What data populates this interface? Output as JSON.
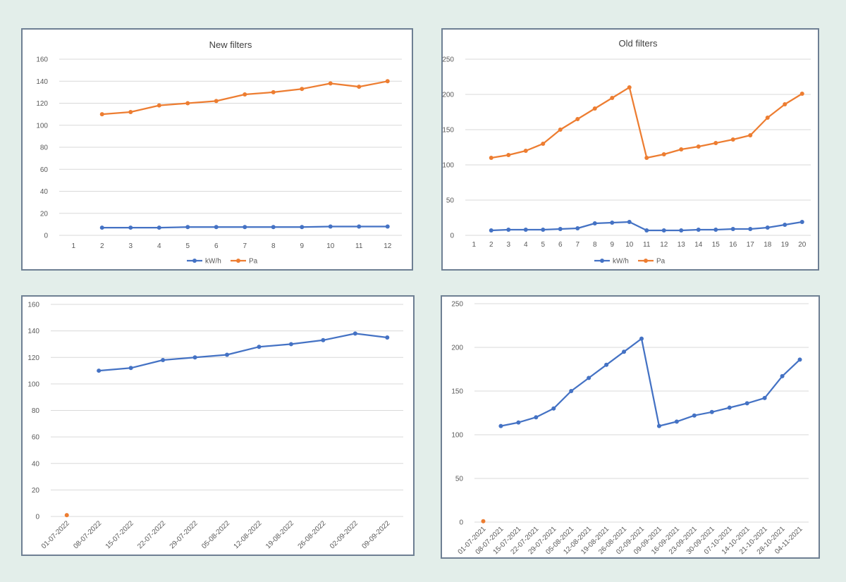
{
  "chart_data": [
    {
      "type": "line",
      "title": "New filters",
      "x": [
        1,
        2,
        3,
        4,
        5,
        6,
        7,
        8,
        9,
        10,
        11,
        12
      ],
      "ylim": [
        0,
        160
      ],
      "yticks": [
        0,
        20,
        40,
        60,
        80,
        100,
        120,
        140,
        160
      ],
      "grid": true,
      "legend": "bottom",
      "series": [
        {
          "name": "kW/h",
          "color": "#4472c4",
          "values": [
            null,
            7,
            7,
            7,
            7.5,
            7.5,
            7.5,
            7.5,
            7.5,
            8,
            8,
            8
          ]
        },
        {
          "name": "Pa",
          "color": "#ed7d31",
          "values": [
            null,
            110,
            112,
            118,
            120,
            122,
            128,
            130,
            133,
            138,
            135,
            140
          ]
        }
      ]
    },
    {
      "type": "line",
      "title": "Old filters",
      "x": [
        1,
        2,
        3,
        4,
        5,
        6,
        7,
        8,
        9,
        10,
        11,
        12,
        13,
        14,
        15,
        16,
        17,
        18,
        19,
        20
      ],
      "ylim": [
        0,
        250
      ],
      "yticks": [
        0,
        50,
        100,
        150,
        200,
        250
      ],
      "grid": true,
      "legend": "bottom",
      "series": [
        {
          "name": "kW/h",
          "color": "#4472c4",
          "values": [
            null,
            7,
            8,
            8,
            8,
            9,
            10,
            17,
            18,
            19,
            7,
            7,
            7,
            8,
            8,
            9,
            9,
            11,
            15,
            19
          ]
        },
        {
          "name": "Pa",
          "color": "#ed7d31",
          "values": [
            null,
            110,
            114,
            120,
            130,
            150,
            165,
            180,
            195,
            210,
            110,
            115,
            122,
            126,
            131,
            136,
            142,
            167,
            186,
            201
          ]
        }
      ]
    },
    {
      "type": "line",
      "title": "",
      "categories": [
        "01-07-2022",
        "08-07-2022",
        "15-07-2022",
        "22-07-2022",
        "29-07-2022",
        "05-08-2022",
        "12-08-2022",
        "19-08-2022",
        "26-08-2022",
        "02-09-2022",
        "09-09-2022"
      ],
      "ylim": [
        0,
        160
      ],
      "yticks": [
        0,
        20,
        40,
        60,
        80,
        100,
        120,
        140,
        160
      ],
      "grid": true,
      "series": [
        {
          "color": "#4472c4",
          "values": [
            null,
            110,
            112,
            118,
            120,
            122,
            128,
            130,
            133,
            138,
            135
          ]
        },
        {
          "color": "#ed7d31",
          "values": [
            1,
            null,
            null,
            null,
            null,
            null,
            null,
            null,
            null,
            null,
            null
          ]
        }
      ]
    },
    {
      "type": "line",
      "title": "",
      "categories": [
        "01-07-2021",
        "08-07-2021",
        "15-07-2021",
        "22-07-2021",
        "29-07-2021",
        "05-08-2021",
        "12-08-2021",
        "19-08-2021",
        "26-08-2021",
        "02-09-2021",
        "09-09-2021",
        "16-09-2021",
        "23-09-2021",
        "30-09-2021",
        "07-10-2021",
        "14-10-2021",
        "21-10-2021",
        "28-10-2021",
        "04-11-2021"
      ],
      "ylim": [
        0,
        250
      ],
      "yticks": [
        0,
        50,
        100,
        150,
        200,
        250
      ],
      "grid": true,
      "series": [
        {
          "color": "#4472c4",
          "values": [
            null,
            110,
            114,
            120,
            130,
            150,
            165,
            180,
            195,
            210,
            110,
            115,
            122,
            126,
            131,
            136,
            142,
            167,
            186
          ]
        },
        {
          "color": "#ed7d31",
          "values": [
            1,
            null,
            null,
            null,
            null,
            null,
            null,
            null,
            null,
            null,
            null,
            null,
            null,
            null,
            null,
            null,
            null,
            null,
            null
          ]
        }
      ]
    }
  ]
}
